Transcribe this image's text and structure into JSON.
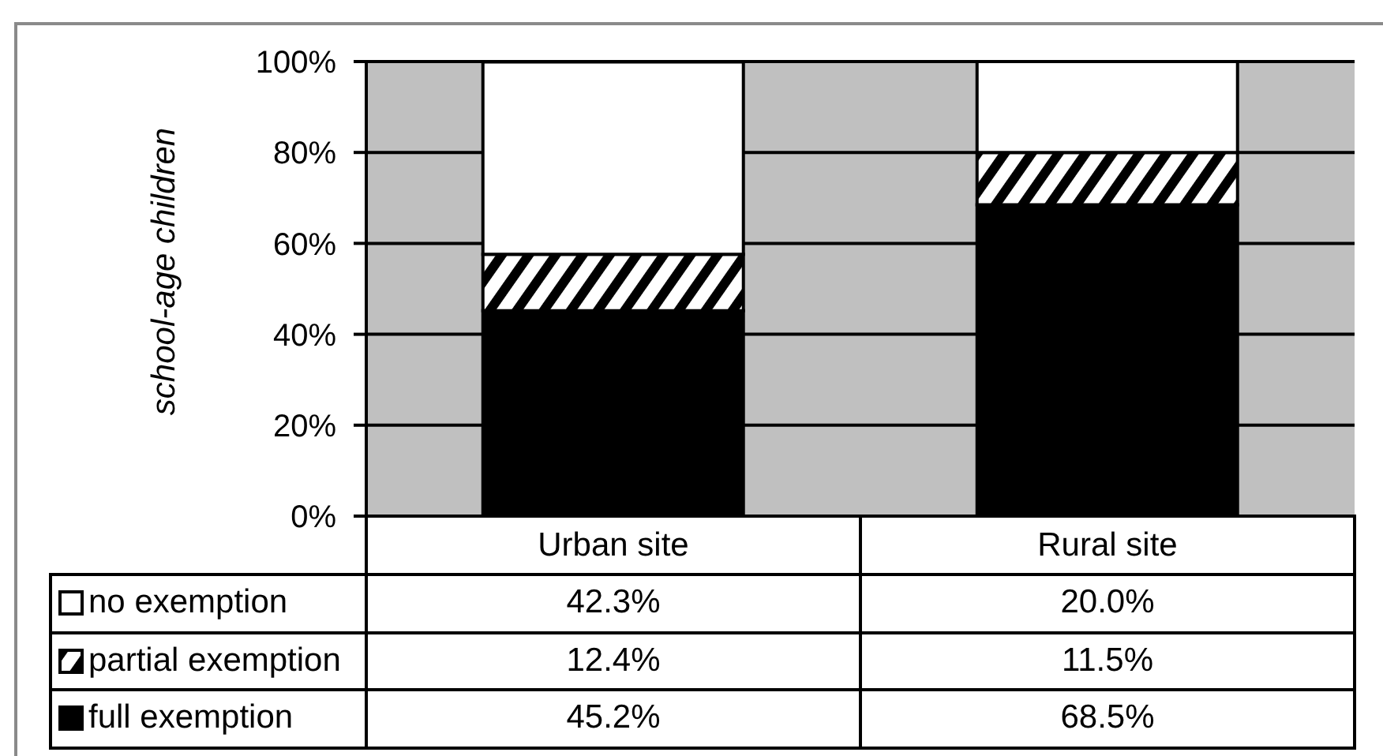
{
  "chart_data": {
    "type": "bar",
    "stacked": true,
    "categories": [
      "Urban site",
      "Rural site"
    ],
    "series": [
      {
        "name": "full exemption",
        "color": "#000000",
        "values": [
          45.2,
          68.5
        ],
        "value_labels": [
          "45.2%",
          "68.5%"
        ]
      },
      {
        "name": "partial exemption",
        "color": "#000000",
        "values": [
          12.4,
          11.5
        ],
        "value_labels": [
          "12.4%",
          "11.5%"
        ]
      },
      {
        "name": "no exemption",
        "color": "#ffffff",
        "values": [
          42.3,
          20.0
        ],
        "value_labels": [
          "42.3%",
          "20.0%"
        ]
      }
    ],
    "ylabel": "school-age children",
    "ylim": [
      0,
      100
    ],
    "yticks": [
      {
        "value": 0,
        "label": "0%"
      },
      {
        "value": 20,
        "label": "20%"
      },
      {
        "value": 40,
        "label": "40%"
      },
      {
        "value": 60,
        "label": "60%"
      },
      {
        "value": 80,
        "label": "80%"
      },
      {
        "value": 100,
        "label": "100%"
      }
    ],
    "grid": "y",
    "legend": "bottom"
  }
}
